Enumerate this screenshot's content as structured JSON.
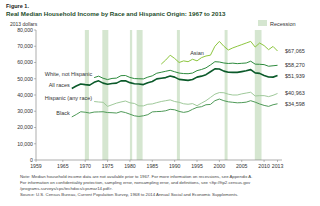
{
  "chart_data": {
    "type": "line",
    "figure_label": "Figure 1.",
    "title": "Real Median Household Income by Race and Hispanic Origin: 1967 to 2013",
    "y_label": "2013 dollars",
    "legend_label": "Recession",
    "grid": false,
    "x": [
      1967,
      1968,
      1969,
      1970,
      1971,
      1972,
      1973,
      1974,
      1975,
      1976,
      1977,
      1978,
      1979,
      1980,
      1981,
      1982,
      1983,
      1984,
      1985,
      1986,
      1987,
      1988,
      1989,
      1990,
      1991,
      1992,
      1993,
      1994,
      1995,
      1996,
      1997,
      1998,
      1999,
      2000,
      2001,
      2002,
      2003,
      2004,
      2005,
      2006,
      2007,
      2008,
      2009,
      2010,
      2011,
      2012,
      2013
    ],
    "xlim": [
      1959,
      2014
    ],
    "xticks": [
      1959,
      1965,
      1970,
      1975,
      1980,
      1985,
      1990,
      1995,
      2000,
      2005,
      2010,
      2013
    ],
    "ylim": [
      0,
      80000
    ],
    "yticks": [
      0,
      {
        "value": 10000,
        "label": "10,000"
      },
      {
        "value": 20000,
        "label": "20,000"
      },
      {
        "value": 30000,
        "label": "30,000"
      },
      {
        "value": 40000,
        "label": "40,000"
      },
      {
        "value": 50000,
        "label": "50,000"
      },
      {
        "value": 60000,
        "label": "60,000"
      },
      {
        "value": 70000,
        "label": "70,000"
      },
      {
        "value": 80000,
        "label": "80,000"
      }
    ],
    "recessions": [
      {
        "start": 1969.92,
        "end": 1970.83
      },
      {
        "start": 1973.83,
        "end": 1975.17
      },
      {
        "start": 1980.0,
        "end": 1980.5
      },
      {
        "start": 1981.5,
        "end": 1982.83
      },
      {
        "start": 1990.5,
        "end": 1991.17
      },
      {
        "start": 2001.17,
        "end": 2001.83
      },
      {
        "start": 2007.92,
        "end": 2009.42
      }
    ],
    "series": [
      {
        "name": "Asian",
        "color": "#8dc63f",
        "values": [
          null,
          null,
          null,
          null,
          null,
          null,
          null,
          null,
          null,
          null,
          null,
          null,
          null,
          null,
          null,
          null,
          null,
          null,
          null,
          null,
          59000,
          61500,
          64500,
          62500,
          60000,
          61000,
          60500,
          62000,
          61000,
          63000,
          64000,
          64500,
          70000,
          73000,
          70000,
          67700,
          69000,
          70000,
          71000,
          72000,
          73000,
          69500,
          72000,
          70400,
          67900,
          69900,
          67065
        ],
        "value_labels": [
          null,
          null,
          null,
          null,
          null,
          null,
          null,
          null,
          null,
          null,
          null,
          null,
          null,
          null,
          null,
          null,
          null,
          null,
          null,
          null,
          null,
          null,
          null,
          null,
          null,
          null,
          null,
          null,
          null,
          null,
          null,
          null,
          null,
          null,
          null,
          null,
          null,
          null,
          null,
          null,
          null,
          null,
          null,
          null,
          null,
          null,
          "$67,065"
        ]
      },
      {
        "name": "White, not Hispanic",
        "color": "#2e8b3e",
        "values": [
          null,
          null,
          null,
          null,
          null,
          50700,
          51600,
          50300,
          49500,
          50200,
          50400,
          51900,
          52000,
          50800,
          50100,
          50000,
          49900,
          51000,
          51800,
          53400,
          54000,
          54600,
          55200,
          54300,
          53500,
          53200,
          53100,
          53500,
          55000,
          55700,
          56700,
          58500,
          60500,
          60300,
          59700,
          59400,
          59600,
          59300,
          59500,
          59700,
          60800,
          59000,
          58900,
          58700,
          57700,
          58000,
          58270
        ],
        "value_labels": [
          null,
          null,
          null,
          null,
          null,
          null,
          null,
          null,
          null,
          null,
          null,
          null,
          null,
          null,
          null,
          null,
          null,
          null,
          null,
          null,
          null,
          null,
          null,
          null,
          null,
          null,
          null,
          null,
          null,
          null,
          null,
          null,
          null,
          null,
          null,
          null,
          null,
          null,
          null,
          null,
          null,
          null,
          null,
          null,
          null,
          null,
          "$58,270"
        ]
      },
      {
        "name": "All races",
        "color": "#0b5a2a",
        "values": [
          44000,
          45500,
          46800,
          46400,
          46100,
          47800,
          48700,
          47300,
          46600,
          47100,
          47300,
          48700,
          48800,
          47600,
          46900,
          46800,
          46400,
          47500,
          48300,
          49900,
          50300,
          50700,
          51700,
          51000,
          49600,
          49300,
          49000,
          49500,
          51000,
          51600,
          52500,
          54300,
          56100,
          56000,
          54700,
          54000,
          53900,
          53900,
          54400,
          54900,
          55600,
          53600,
          53300,
          52000,
          51100,
          51000,
          51939
        ],
        "value_labels": [
          null,
          null,
          null,
          null,
          null,
          null,
          null,
          null,
          null,
          null,
          null,
          null,
          null,
          null,
          null,
          null,
          null,
          null,
          null,
          null,
          null,
          null,
          null,
          null,
          null,
          null,
          null,
          null,
          null,
          null,
          null,
          null,
          null,
          null,
          null,
          null,
          null,
          null,
          null,
          null,
          null,
          null,
          null,
          null,
          null,
          null,
          "$51,939"
        ]
      },
      {
        "name": "Hispanic (any race)",
        "color": "#9fc99a",
        "values": [
          null,
          null,
          null,
          null,
          null,
          36000,
          35700,
          35500,
          33000,
          34000,
          35000,
          35700,
          36300,
          35200,
          34800,
          33300,
          33300,
          34300,
          34500,
          35300,
          36000,
          36500,
          37000,
          36000,
          35500,
          34600,
          34300,
          34700,
          33400,
          35000,
          36500,
          38500,
          40500,
          41500,
          41400,
          40500,
          40000,
          40000,
          40700,
          41200,
          41700,
          39400,
          39600,
          39600,
          39000,
          39800,
          40963
        ],
        "value_labels": [
          null,
          null,
          null,
          null,
          null,
          null,
          null,
          null,
          null,
          null,
          null,
          null,
          null,
          null,
          null,
          null,
          null,
          null,
          null,
          null,
          null,
          null,
          null,
          null,
          null,
          null,
          null,
          null,
          null,
          null,
          null,
          null,
          null,
          null,
          null,
          null,
          null,
          null,
          null,
          null,
          null,
          null,
          null,
          null,
          null,
          null,
          "$40,963"
        ]
      },
      {
        "name": "Black",
        "color": "#4f9a58",
        "values": [
          26500,
          28000,
          29700,
          29400,
          28900,
          29500,
          29600,
          29700,
          29200,
          29100,
          28900,
          29800,
          29200,
          28200,
          27200,
          26800,
          27200,
          27900,
          29600,
          29800,
          29900,
          30300,
          31200,
          30900,
          29900,
          29300,
          29800,
          31200,
          32400,
          32800,
          34000,
          34200,
          36500,
          37500,
          36500,
          35800,
          35500,
          35200,
          35300,
          35600,
          36500,
          35600,
          34500,
          33600,
          33000,
          34000,
          34598
        ],
        "value_labels": [
          null,
          null,
          null,
          null,
          null,
          null,
          null,
          null,
          null,
          null,
          null,
          null,
          null,
          null,
          null,
          null,
          null,
          null,
          null,
          null,
          null,
          null,
          null,
          null,
          null,
          null,
          null,
          null,
          null,
          null,
          null,
          null,
          null,
          null,
          null,
          null,
          null,
          null,
          null,
          null,
          null,
          null,
          null,
          null,
          null,
          null,
          "$34,598"
        ]
      }
    ],
    "notes": [
      "Note: Median household income data are not available prior to 1967. For more information on recessions, see Appendix A.",
      "For information on confidentiality protection, sampling error, nonsampling error, and definitions, see <ftp://ftp2.census.gov",
      "/programs-surveys/cps/techdocs/cpsmar14.pdf>.",
      "Source: U.S. Census Bureau, Current Population Survey, 1968 to 2014 Annual Social and Economic Supplements."
    ]
  }
}
